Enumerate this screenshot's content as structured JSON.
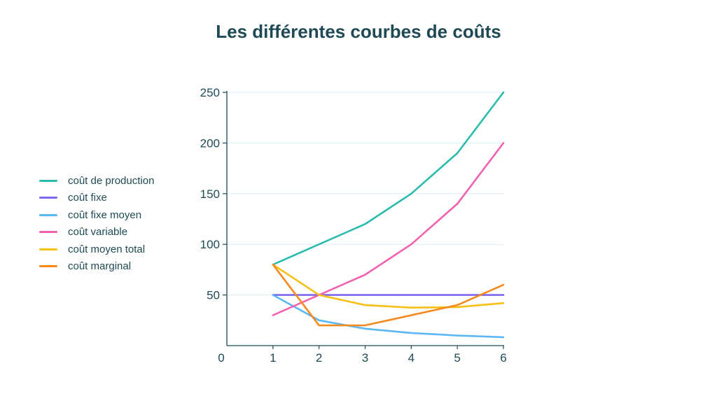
{
  "colors": {
    "text": "#1f4a55",
    "axis": "#1f4a55",
    "grid": "#dcebf5"
  },
  "chart_data": {
    "type": "line",
    "title": "Les différentes courbes de coûts",
    "xlabel": "",
    "ylabel": "",
    "x": [
      1,
      2,
      3,
      4,
      5,
      6
    ],
    "xticks": [
      "0",
      "1",
      "2",
      "3",
      "4",
      "5",
      "6"
    ],
    "yticks": [
      "50",
      "100",
      "150",
      "200",
      "250"
    ],
    "xlim": [
      0,
      6
    ],
    "ylim": [
      0,
      250
    ],
    "grid": true,
    "legend_position": "left",
    "series": [
      {
        "name": "coût de production",
        "color": "#2bbbad",
        "values": [
          80,
          100,
          120,
          150,
          190,
          250
        ]
      },
      {
        "name": "coût fixe",
        "color": "#7b68ee",
        "values": [
          50,
          50,
          50,
          50,
          50,
          50
        ]
      },
      {
        "name": "coût fixe moyen",
        "color": "#5bb8f5",
        "values": [
          50,
          25,
          16.7,
          12.5,
          10,
          8.3
        ]
      },
      {
        "name": "coût variable",
        "color": "#f062b0",
        "values": [
          30,
          50,
          70,
          100,
          140,
          200
        ]
      },
      {
        "name": "coût moyen total",
        "color": "#f6c015",
        "values": [
          80,
          50,
          40,
          37.5,
          38,
          42
        ]
      },
      {
        "name": "coût marginal",
        "color": "#f58a1f",
        "values": [
          80,
          20,
          20,
          30,
          40,
          60
        ]
      }
    ]
  }
}
